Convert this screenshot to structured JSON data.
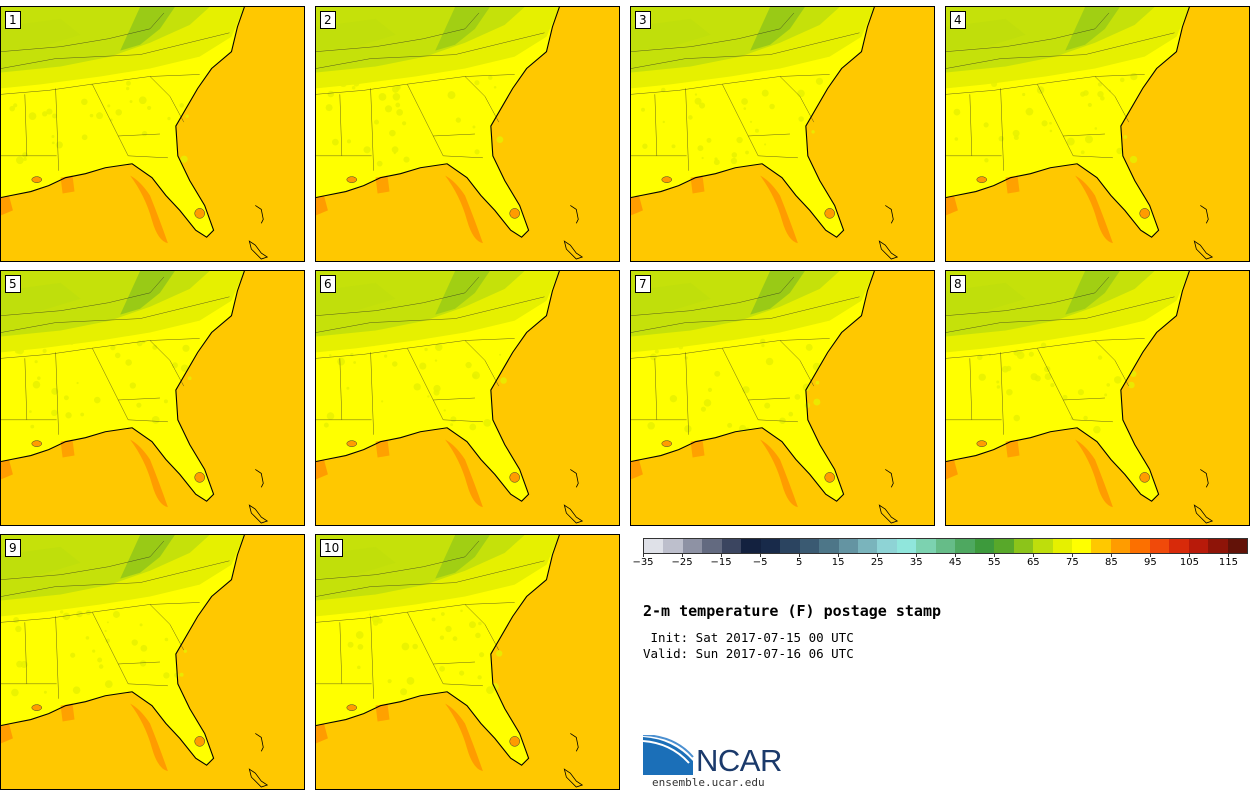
{
  "panels": [
    {
      "label": "1"
    },
    {
      "label": "2"
    },
    {
      "label": "3"
    },
    {
      "label": "4"
    },
    {
      "label": "5"
    },
    {
      "label": "6"
    },
    {
      "label": "7"
    },
    {
      "label": "8"
    },
    {
      "label": "9"
    },
    {
      "label": "10"
    }
  ],
  "colorbar": {
    "colors": [
      "#dfe1e8",
      "#bdbfcc",
      "#8e92a4",
      "#636a80",
      "#3b4560",
      "#13213f",
      "#182a4a",
      "#2b4460",
      "#3a5a72",
      "#4d7688",
      "#6494a2",
      "#7ab4bc",
      "#8ed3d5",
      "#90e6dc",
      "#7cd2b0",
      "#66bc88",
      "#4ea860",
      "#3d9a3c",
      "#58a82a",
      "#8cc41a",
      "#bede0c",
      "#e6f000",
      "#ffff00",
      "#ffc800",
      "#ff9c00",
      "#fc7000",
      "#f04a0a",
      "#d82a0a",
      "#b81a0a",
      "#8e1408",
      "#621208"
    ],
    "tick_labels": [
      "−35",
      "−25",
      "−15",
      "−5",
      "5",
      "15",
      "25",
      "35",
      "45",
      "55",
      "65",
      "75",
      "85",
      "95",
      "105",
      "115"
    ]
  },
  "title": "2-m temperature (F) postage stamp",
  "init": " Init: Sat 2017-07-15 00 UTC",
  "valid": "Valid: Sun 2017-07-16 06 UTC",
  "logo": {
    "name": "NCAR",
    "url": "ensemble.ucar.edu",
    "colors": {
      "dark": "#1b3a6b",
      "light": "#4a8fd0"
    }
  }
}
